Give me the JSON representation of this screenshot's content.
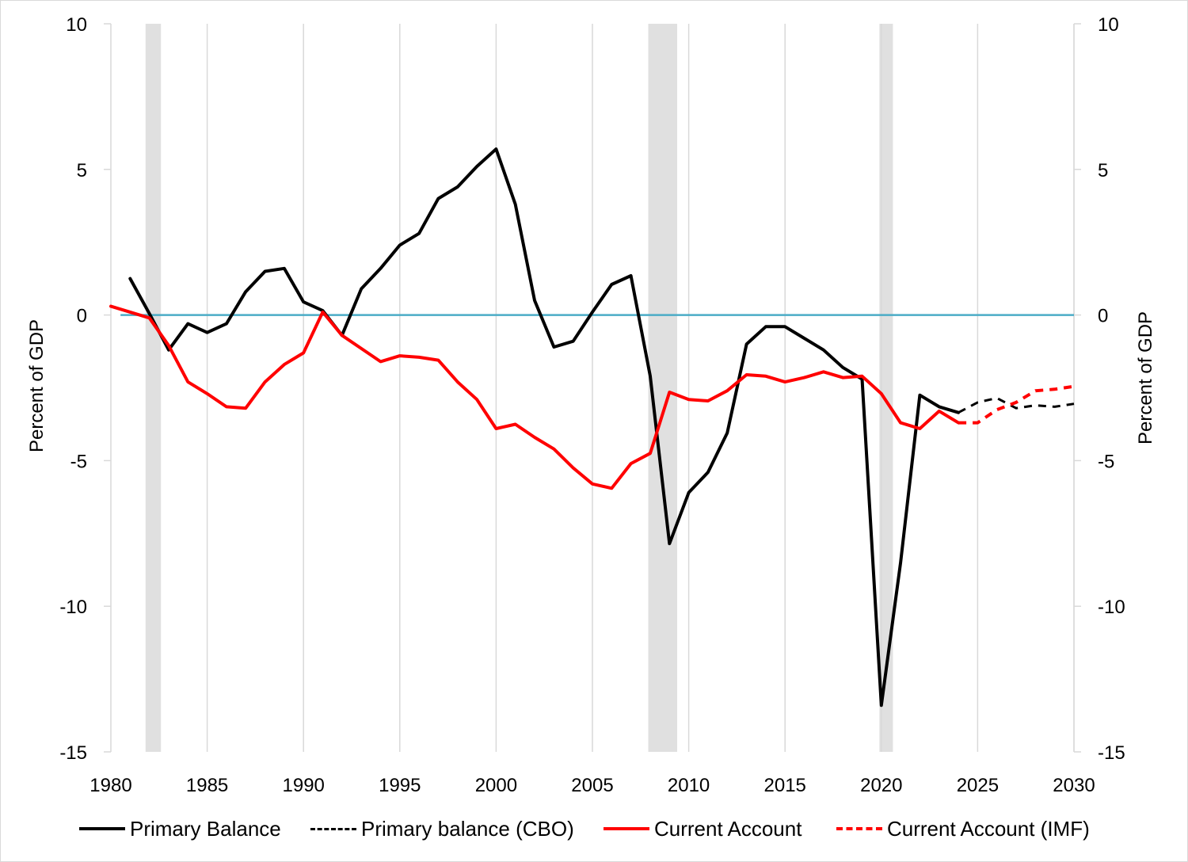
{
  "chart_data": {
    "type": "line",
    "ylabel_left": "Percent of GDP",
    "ylabel_right": "Percent of GDP",
    "xlim": [
      1980,
      2030
    ],
    "ylim": [
      -15,
      10
    ],
    "x_ticks": [
      "1980",
      "1985",
      "1990",
      "1995",
      "2000",
      "2005",
      "2010",
      "2015",
      "2020",
      "2025",
      "2030"
    ],
    "y_ticks": [
      "10",
      "5",
      "0",
      "-5",
      "-10",
      "-15"
    ],
    "grid": "vertical",
    "zero_line_color": "#4bacc6",
    "recession_shading": [
      [
        1981.8,
        1982.6
      ],
      [
        2007.9,
        2009.4
      ],
      [
        2019.9,
        2020.6
      ]
    ],
    "recession_color": "#e0e0e0",
    "legend_position": "bottom",
    "series": [
      {
        "name": "Primary Balance",
        "color": "#000000",
        "style": "solid",
        "x": [
          1981,
          1982,
          1983,
          1984,
          1985,
          1986,
          1987,
          1988,
          1989,
          1990,
          1991,
          1992,
          1993,
          1994,
          1995,
          1996,
          1997,
          1998,
          1999,
          2000,
          2001,
          2002,
          2003,
          2004,
          2005,
          2006,
          2007,
          2008,
          2009,
          2010,
          2011,
          2012,
          2013,
          2014,
          2015,
          2016,
          2017,
          2018,
          2019,
          2020,
          2021,
          2022,
          2023,
          2024
        ],
        "values": [
          1.25,
          0.05,
          -1.2,
          -0.3,
          -0.6,
          -0.3,
          0.8,
          1.5,
          1.6,
          0.45,
          0.15,
          -0.7,
          0.9,
          1.6,
          2.4,
          2.8,
          4.0,
          4.4,
          5.1,
          5.7,
          3.8,
          0.5,
          -1.1,
          -0.9,
          0.1,
          1.05,
          1.35,
          -2.1,
          -7.85,
          -6.1,
          -5.4,
          -4.05,
          -1.0,
          -0.4,
          -0.4,
          -0.8,
          -1.2,
          -1.8,
          -2.2,
          -13.4,
          -8.5,
          -2.75,
          -3.15,
          -3.35
        ]
      },
      {
        "name": "Primary balance (CBO)",
        "color": "#000000",
        "style": "dashed",
        "x": [
          2024,
          2025,
          2026,
          2027,
          2028,
          2029,
          2030
        ],
        "values": [
          -3.35,
          -3.0,
          -2.85,
          -3.2,
          -3.1,
          -3.15,
          -3.05
        ]
      },
      {
        "name": "Current Account",
        "color": "#ff0000",
        "style": "solid",
        "x": [
          1980,
          1981,
          1982,
          1983,
          1984,
          1985,
          1986,
          1987,
          1988,
          1989,
          1990,
          1991,
          1992,
          1993,
          1994,
          1995,
          1996,
          1997,
          1998,
          1999,
          2000,
          2001,
          2002,
          2003,
          2004,
          2005,
          2006,
          2007,
          2008,
          2009,
          2010,
          2011,
          2012,
          2013,
          2014,
          2015,
          2016,
          2017,
          2018,
          2019,
          2020,
          2021,
          2022,
          2023,
          2024
        ],
        "values": [
          0.3,
          0.1,
          -0.1,
          -1.05,
          -2.3,
          -2.7,
          -3.15,
          -3.2,
          -2.3,
          -1.7,
          -1.3,
          0.1,
          -0.7,
          -1.15,
          -1.6,
          -1.4,
          -1.45,
          -1.55,
          -2.3,
          -2.9,
          -3.9,
          -3.75,
          -4.2,
          -4.6,
          -5.25,
          -5.8,
          -5.95,
          -5.1,
          -4.75,
          -2.65,
          -2.9,
          -2.95,
          -2.6,
          -2.05,
          -2.1,
          -2.3,
          -2.15,
          -1.95,
          -2.15,
          -2.1,
          -2.7,
          -3.7,
          -3.9,
          -3.3,
          -3.7
        ]
      },
      {
        "name": "Current Account (IMF)",
        "color": "#ff0000",
        "style": "dashed",
        "x": [
          2024,
          2025,
          2026,
          2027,
          2028,
          2029,
          2030
        ],
        "values": [
          -3.7,
          -3.7,
          -3.25,
          -3.0,
          -2.6,
          -2.55,
          -2.45
        ]
      }
    ]
  }
}
